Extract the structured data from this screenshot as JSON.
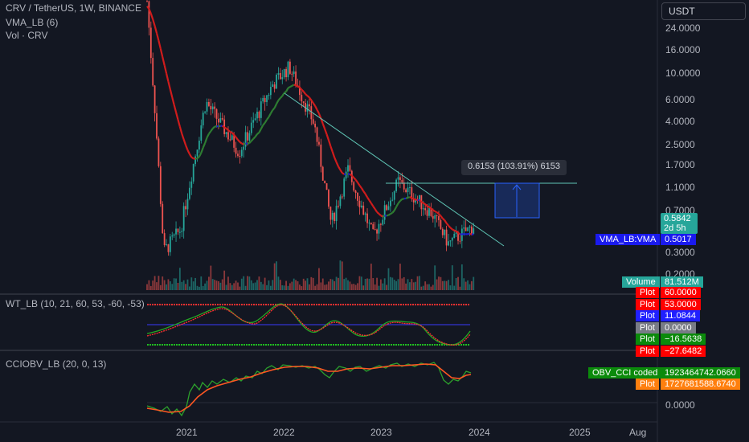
{
  "chart": {
    "symbol_title": "CRV / TetherUS, 1W, BINANCE",
    "indicator_1": "VMA_LB (6)",
    "indicator_2": "Vol · CRV",
    "currency": "USDT",
    "measure_label": "0.6153 (103.91%) 6153",
    "colors": {
      "background": "#131722",
      "up": "#26a69a",
      "down": "#ef5350",
      "trendline": "#5fc5b5",
      "vma_red": "#d01c1c",
      "vma_blue": "#1c1cd0",
      "vma_green": "#2e7d32"
    }
  },
  "price_axis": {
    "ticks": [
      "24.0000",
      "16.0000",
      "10.0000",
      "6.0000",
      "4.0000",
      "2.5000",
      "1.7000",
      "1.1000",
      "0.7000",
      "0.3000",
      "0.2000"
    ],
    "last_price": "0.5842",
    "countdown": "2d 5h",
    "vma_label": "VMA_LB:VMA",
    "vma_value": "0.5017",
    "volume_label": "Volume",
    "volume_value": "81.512M"
  },
  "wt_panel": {
    "title": "WT_LB (10, 21, 60, 53, -60, -53)",
    "badges": [
      {
        "label": "Plot",
        "value": "60.0000",
        "color": "#ff0000"
      },
      {
        "label": "Plot",
        "value": "53.0000",
        "color": "#ff0000"
      },
      {
        "label": "Plot",
        "value": "11.0844",
        "color": "#2020ff"
      },
      {
        "label": "Plot",
        "value": "0.0000",
        "color": "#787b86"
      },
      {
        "label": "Plot",
        "value": "−16.5638",
        "color": "#0b8a0b"
      },
      {
        "label": "Plot",
        "value": "−27.6482",
        "color": "#ff0000"
      }
    ]
  },
  "cci_panel": {
    "title": "CCIOBV_LB (20, 0, 13)",
    "badge_1_label": "OBV_CCI coded",
    "badge_1_value": "1923464742.0660",
    "badge_2_label": "Plot",
    "badge_2_value": "1727681588.6740",
    "badge_1_color": "#0b8a0b",
    "badge_2_color": "#ff7f0e",
    "zero_label": "0.0000"
  },
  "time_axis": {
    "labels": [
      "2021",
      "2022",
      "2023",
      "2024",
      "2025",
      "Aug"
    ]
  },
  "chart_data": {
    "type": "candlestick",
    "title": "CRV / TetherUS, 1W, BINANCE",
    "x_range": [
      "2020-08",
      "2025-08"
    ],
    "price_scale": "log",
    "price_approx_points": [
      {
        "x": "2020-08",
        "y": 15.0
      },
      {
        "x": "2020-09",
        "y": 2.8
      },
      {
        "x": "2020-10",
        "y": 0.4
      },
      {
        "x": "2020-12",
        "y": 0.55
      },
      {
        "x": "2021-03",
        "y": 3.5
      },
      {
        "x": "2021-07",
        "y": 1.7
      },
      {
        "x": "2021-11",
        "y": 4.5
      },
      {
        "x": "2022-01",
        "y": 5.8
      },
      {
        "x": "2022-04",
        "y": 2.5
      },
      {
        "x": "2022-06",
        "y": 0.6
      },
      {
        "x": "2022-08",
        "y": 1.3
      },
      {
        "x": "2022-11",
        "y": 0.5
      },
      {
        "x": "2023-02",
        "y": 1.1
      },
      {
        "x": "2023-06",
        "y": 0.7
      },
      {
        "x": "2023-08",
        "y": 0.45
      },
      {
        "x": "2023-11",
        "y": 0.58
      }
    ],
    "last_price": 0.5842,
    "vma": 0.5017,
    "volume": "81.512M"
  }
}
